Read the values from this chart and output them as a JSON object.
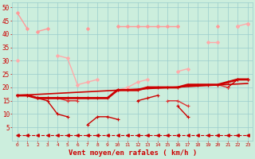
{
  "x": [
    0,
    1,
    2,
    3,
    4,
    5,
    6,
    7,
    8,
    9,
    10,
    11,
    12,
    13,
    14,
    15,
    16,
    17,
    18,
    19,
    20,
    21,
    22,
    23
  ],
  "line_top": [
    48,
    42,
    null,
    null,
    null,
    null,
    null,
    null,
    null,
    null,
    null,
    null,
    null,
    null,
    null,
    null,
    null,
    null,
    null,
    null,
    null,
    null,
    null,
    44
  ],
  "line_upper": [
    null,
    null,
    41,
    42,
    null,
    null,
    null,
    42,
    null,
    null,
    43,
    43,
    43,
    43,
    43,
    43,
    43,
    null,
    null,
    null,
    43,
    null,
    43,
    null
  ],
  "line_mid": [
    30,
    null,
    null,
    null,
    32,
    31,
    21,
    22,
    23,
    null,
    19,
    20,
    22,
    23,
    null,
    null,
    26,
    27,
    null,
    37,
    37,
    null,
    43,
    44
  ],
  "line_thick": [
    17,
    17,
    16,
    16,
    16,
    16,
    16,
    16,
    16,
    16,
    19,
    19,
    19,
    20,
    20,
    20,
    20,
    21,
    21,
    21,
    21,
    22,
    23,
    23
  ],
  "line_red2": [
    17,
    17,
    16,
    15,
    10,
    9,
    null,
    6,
    9,
    9,
    8,
    null,
    15,
    16,
    17,
    null,
    13,
    9,
    null,
    null,
    null,
    20,
    23,
    23
  ],
  "line_red3": [
    17,
    17,
    16,
    16,
    16,
    15,
    15,
    null,
    null,
    null,
    19,
    null,
    null,
    null,
    null,
    15,
    15,
    13,
    null,
    null,
    21,
    20,
    null,
    23
  ],
  "line_arrow": [
    2,
    2,
    2,
    2,
    2,
    2,
    2,
    2,
    2,
    2,
    2,
    2,
    2,
    2,
    2,
    2,
    2,
    2,
    2,
    2,
    2,
    2,
    2,
    2
  ],
  "trend_x": [
    0,
    23
  ],
  "trend_y": [
    17.0,
    21.5
  ],
  "bg_color": "#cceedd",
  "grid_color": "#99cccc",
  "color_light": "#ff9999",
  "color_mid": "#ffaaaa",
  "color_dark": "#cc0000",
  "color_medium": "#dd3333",
  "xlabel": "Vent moyen/en rafales ( km/h )",
  "tick_color": "#cc0000",
  "label_color": "#cc0000",
  "ylim": [
    0,
    52
  ],
  "xlim": [
    -0.5,
    23.5
  ],
  "yticks": [
    5,
    10,
    15,
    20,
    25,
    30,
    35,
    40,
    45,
    50
  ]
}
